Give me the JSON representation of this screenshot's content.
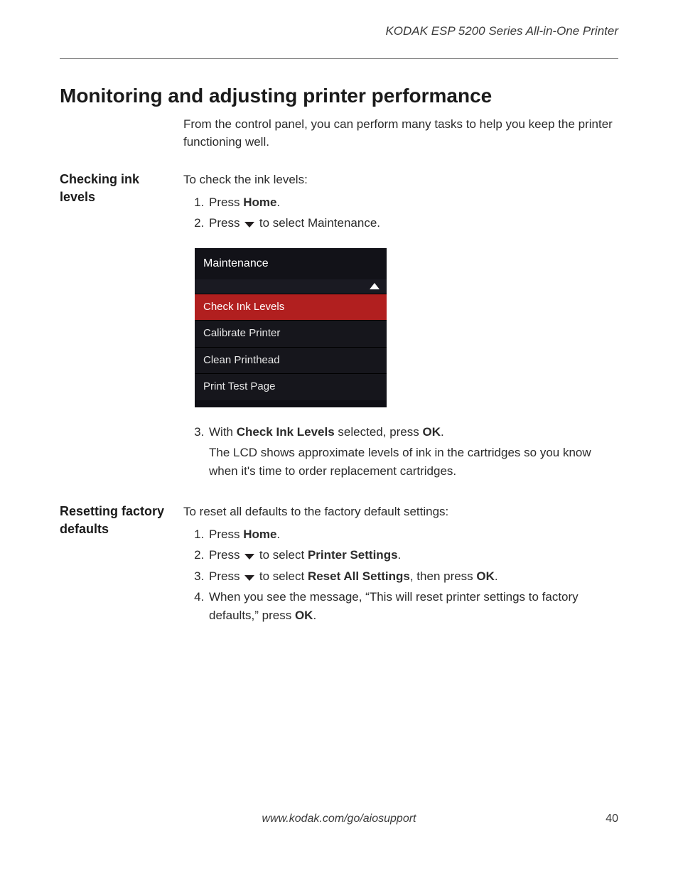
{
  "header": {
    "product_line": "KODAK ESP 5200 Series All-in-One Printer"
  },
  "title": "Monitoring and adjusting printer performance",
  "intro": "From the control panel, you can perform many tasks to help you keep the printer functioning well.",
  "sections": {
    "ink": {
      "heading": "Checking ink levels",
      "lead": "To check the ink levels:",
      "steps": {
        "s1_pre": "Press ",
        "s1_bold": "Home",
        "s1_post": ".",
        "s2_pre": "Press ",
        "s2_post": " to select Maintenance.",
        "s3_pre": "With ",
        "s3_bold": "Check Ink Levels",
        "s3_mid": " selected, press ",
        "s3_bold2": "OK",
        "s3_post": ".",
        "s3_sub": "The LCD shows approximate levels of ink in the cartridges so you know when it's time to order replacement cartridges."
      }
    },
    "reset": {
      "heading": "Resetting factory defaults",
      "lead": "To reset all defaults to the factory default settings:",
      "steps": {
        "s1_pre": "Press ",
        "s1_bold": "Home",
        "s1_post": ".",
        "s2_pre": "Press ",
        "s2_mid": " to select ",
        "s2_bold": "Printer Settings",
        "s2_post": ".",
        "s3_pre": "Press ",
        "s3_mid": " to select ",
        "s3_bold": "Reset All Settings",
        "s3_mid2": ", then press ",
        "s3_bold2": "OK",
        "s3_post": ".",
        "s4_pre": "When you see the message, “This will reset printer settings to factory defaults,” press ",
        "s4_bold": "OK",
        "s4_post": "."
      }
    }
  },
  "lcd": {
    "title": "Maintenance",
    "items": [
      {
        "label": "Check Ink Levels",
        "selected": true
      },
      {
        "label": "Calibrate Printer",
        "selected": false
      },
      {
        "label": "Clean Printhead",
        "selected": false
      },
      {
        "label": "Print Test Page",
        "selected": false
      }
    ],
    "colors": {
      "bg": "#000000",
      "item_bg": "#16161c",
      "selected_bg": "#b11f1f",
      "text": "#e7e7e7",
      "selected_text": "#ffffff"
    }
  },
  "footer": {
    "url": "www.kodak.com/go/aiosupport",
    "page": "40"
  }
}
